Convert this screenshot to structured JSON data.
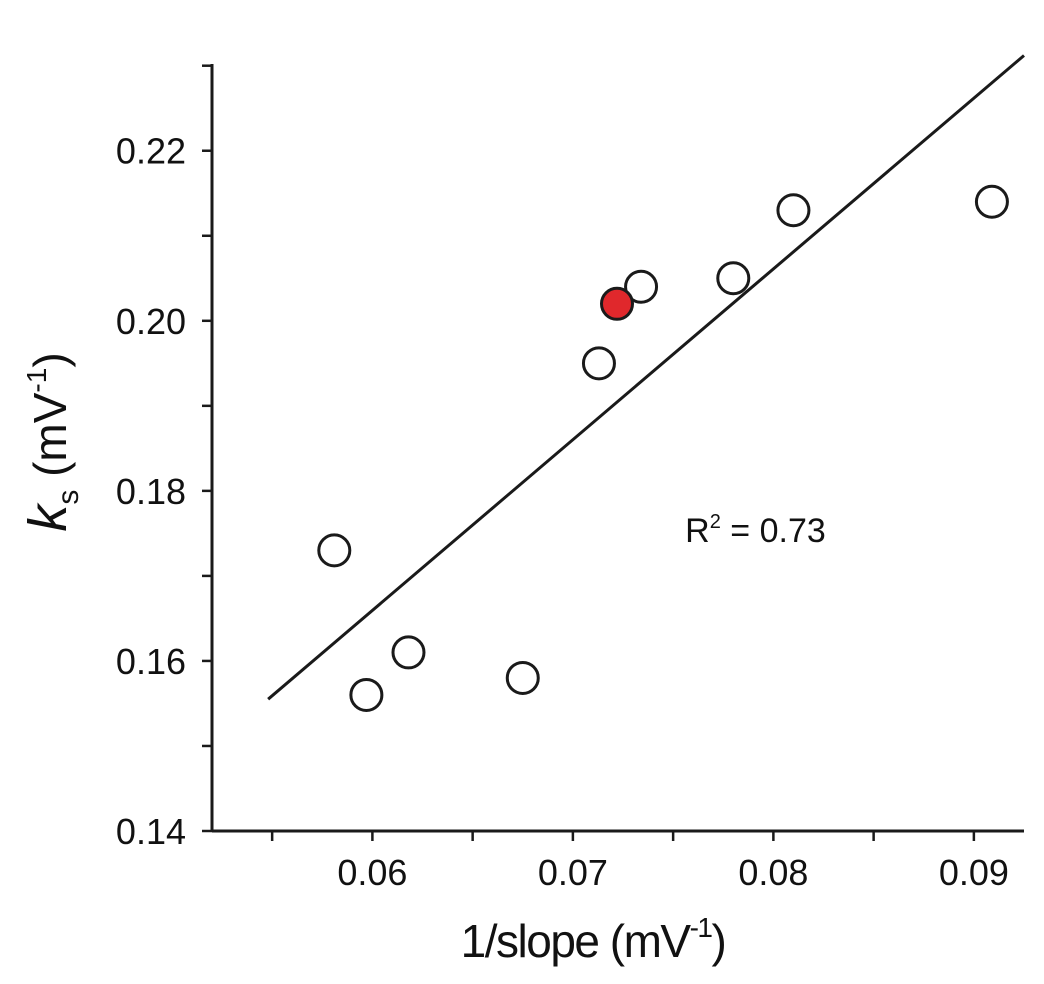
{
  "chart_data": {
    "type": "scatter",
    "title": "",
    "xlabel": {
      "main": "1/slope (mV",
      "sup": "-1",
      "close": ")"
    },
    "ylabel": {
      "italic": "k",
      "sub": "s",
      "main": " (mV",
      "sup": "-1",
      "close": ")"
    },
    "xlim": [
      0.052,
      0.0925
    ],
    "ylim": [
      0.14,
      0.2302
    ],
    "x_ticks": [
      {
        "value": 0.06,
        "label": "0.06"
      },
      {
        "value": 0.07,
        "label": "0.07"
      },
      {
        "value": 0.08,
        "label": "0.08"
      },
      {
        "value": 0.09,
        "label": "0.09"
      }
    ],
    "y_ticks": [
      {
        "value": 0.14,
        "label": "0.14"
      },
      {
        "value": 0.16,
        "label": "0.16"
      },
      {
        "value": 0.18,
        "label": "0.18"
      },
      {
        "value": 0.2,
        "label": "0.20"
      },
      {
        "value": 0.22,
        "label": "0.22"
      }
    ],
    "x_minor_step": 0.005,
    "y_minor_step": 0.01,
    "points": [
      {
        "x": 0.0581,
        "y": 0.173,
        "highlighted": false
      },
      {
        "x": 0.0597,
        "y": 0.156,
        "highlighted": false
      },
      {
        "x": 0.0618,
        "y": 0.161,
        "highlighted": false
      },
      {
        "x": 0.0675,
        "y": 0.158,
        "highlighted": false
      },
      {
        "x": 0.0713,
        "y": 0.195,
        "highlighted": false
      },
      {
        "x": 0.0734,
        "y": 0.204,
        "highlighted": false
      },
      {
        "x": 0.0722,
        "y": 0.202,
        "highlighted": true
      },
      {
        "x": 0.078,
        "y": 0.205,
        "highlighted": false
      },
      {
        "x": 0.081,
        "y": 0.213,
        "highlighted": false
      },
      {
        "x": 0.0909,
        "y": 0.214,
        "highlighted": false
      }
    ],
    "fit_line": {
      "x_start": 0.0548,
      "x_end": 0.0925,
      "y_start": 0.1555,
      "y_end": 0.2312
    },
    "annotation": {
      "base": "R",
      "sup": "2",
      "rest": " = 0.73",
      "x": 0.0756,
      "y": 0.174
    },
    "colors": {
      "axis": "#1a1a1a",
      "marker_fill": "#ffffff",
      "highlight_fill": "#e0282c",
      "line": "#1a1a1a"
    }
  }
}
